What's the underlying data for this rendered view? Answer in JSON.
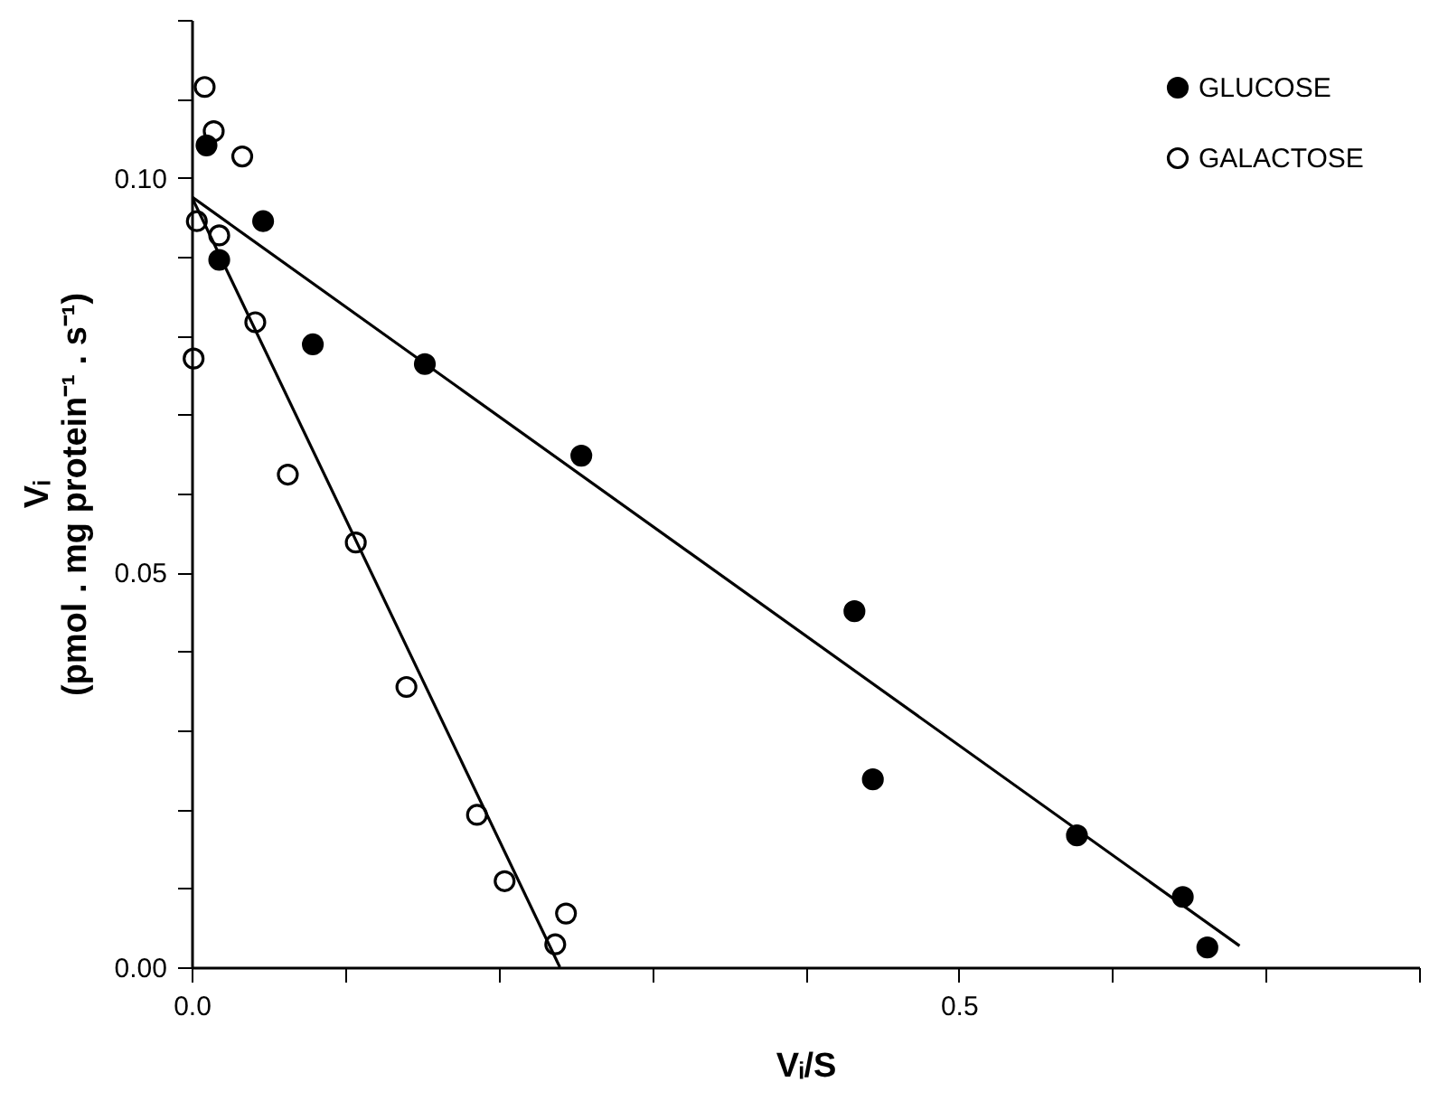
{
  "chart_data": {
    "type": "scatter",
    "xlabel": "Vᵢ/S",
    "ylabel": "Vᵢ\n(pmol . mg protein⁻¹ . s⁻¹)",
    "xlim": [
      0,
      0.8
    ],
    "ylim": [
      0,
      0.12
    ],
    "xticks": [
      {
        "value": 0,
        "label": "0.0"
      },
      {
        "value": 0.1,
        "label": null
      },
      {
        "value": 0.2,
        "label": null
      },
      {
        "value": 0.3,
        "label": null
      },
      {
        "value": 0.4,
        "label": null
      },
      {
        "value": 0.5,
        "label": "0.5"
      },
      {
        "value": 0.6,
        "label": null
      },
      {
        "value": 0.7,
        "label": null
      },
      {
        "value": 0.8,
        "label": null
      }
    ],
    "yticks": [
      {
        "value": 0,
        "label": "0.00"
      },
      {
        "value": 0.01,
        "label": null
      },
      {
        "value": 0.02,
        "label": null
      },
      {
        "value": 0.03,
        "label": null
      },
      {
        "value": 0.04,
        "label": null
      },
      {
        "value": 0.05,
        "label": "0.05"
      },
      {
        "value": 0.06,
        "label": null
      },
      {
        "value": 0.07,
        "label": null
      },
      {
        "value": 0.08,
        "label": null
      },
      {
        "value": 0.09,
        "label": null
      },
      {
        "value": 0.1,
        "label": "0.10"
      },
      {
        "value": 0.11,
        "label": null
      },
      {
        "value": 0.12,
        "label": null
      }
    ],
    "grid": false,
    "legend": "top right",
    "marker": "circle",
    "series": [
      {
        "name": "GLUCOSE",
        "color": "#000000",
        "x": [
          0.0097,
          0.018,
          0.0466,
          0.079,
          0.152,
          0.254,
          0.432,
          0.444,
          0.577,
          0.646,
          0.662
        ],
        "values": [
          0.1041,
          0.0896,
          0.0945,
          0.0789,
          0.0764,
          0.0648,
          0.0451,
          0.0238,
          0.0167,
          0.0089,
          0.0025
        ]
      },
      {
        "name": "GALACTOSE",
        "color": "#000000",
        "x": [
          0.0013,
          0.0034,
          0.0085,
          0.0144,
          0.018,
          0.033,
          0.0415,
          0.0627,
          0.107,
          0.14,
          0.186,
          0.204,
          0.237,
          0.244
        ],
        "values": [
          0.0771,
          0.0945,
          0.1115,
          0.1059,
          0.0927,
          0.1027,
          0.0817,
          0.0624,
          0.0538,
          0.0355,
          0.0193,
          0.0109,
          0.0029,
          0.0068
        ]
      },
      {
        "type": "line",
        "color": "#000000",
        "marker": "none",
        "x": [
          0,
          0.683
        ],
        "values": [
          0.0976,
          0.0027
        ]
      },
      {
        "type": "line",
        "color": "#000000",
        "marker": "none",
        "x": [
          0,
          0.24
        ],
        "values": [
          0.0976,
          0
        ]
      }
    ]
  }
}
